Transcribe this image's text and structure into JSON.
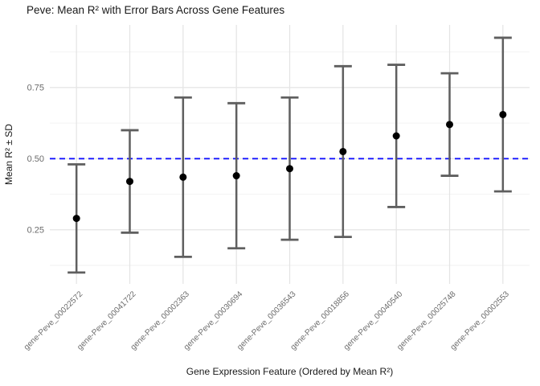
{
  "chart_data": {
    "type": "errorbar",
    "title": "Peve: Mean R² with Error Bars Across Gene Features",
    "xlabel": "Gene Expression Feature (Ordered by Mean R²)",
    "ylabel": "Mean R² ± SD",
    "categories": [
      "gene-Peve_00022572",
      "gene-Peve_00041722",
      "gene-Peve_00002363",
      "gene-Peve_00030694",
      "gene-Peve_00036543",
      "gene-Peve_00018856",
      "gene-Peve_00040540",
      "gene-Peve_00025748",
      "gene-Peve_00002553"
    ],
    "series": [
      {
        "name": "Mean R²",
        "means": [
          0.29,
          0.42,
          0.435,
          0.44,
          0.465,
          0.525,
          0.58,
          0.62,
          0.655
        ],
        "sds": [
          0.19,
          0.18,
          0.28,
          0.255,
          0.25,
          0.3,
          0.25,
          0.18,
          0.27
        ]
      }
    ],
    "yticks": [
      0.25,
      0.5,
      0.75
    ],
    "ytick_labels": [
      "0.25",
      "0.50",
      "0.75"
    ],
    "minor_yticks": [
      0.125,
      0.375,
      0.625,
      0.875
    ],
    "ylim": [
      0.06,
      0.97
    ],
    "reference_line": {
      "y": 0.5,
      "style": "dashed",
      "color": "#1414ff"
    },
    "grid": true,
    "legend": false,
    "colors": {
      "background": "#ffffff",
      "grid_major": "#e4e4e4",
      "grid_minor": "#f2f2f2",
      "errorbar": "#5f5f5f",
      "point": "#000000",
      "axis_text": "#6b6b6b",
      "title_text": "#191919",
      "reference": "#1414ff"
    }
  }
}
